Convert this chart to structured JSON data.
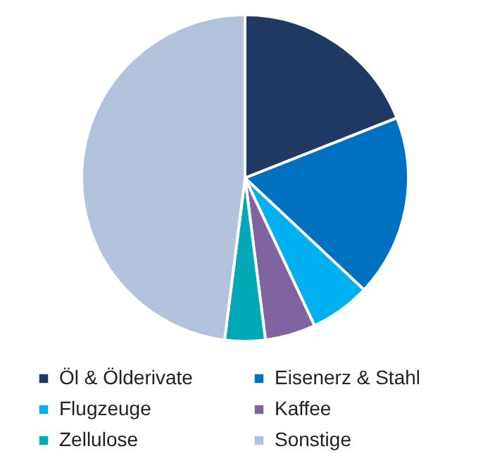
{
  "chart_data": {
    "type": "pie",
    "categories": [
      "Öl & Ölderivate",
      "Eisenerz & Stahl",
      "Flugzeuge",
      "Kaffee",
      "Zellulose",
      "Sonstige"
    ],
    "values": [
      19,
      18,
      6,
      5,
      4,
      48
    ],
    "colors": [
      "#203864",
      "#0070c0",
      "#00b0f0",
      "#8064a2",
      "#00a9b5",
      "#b4c3dc"
    ],
    "legend": "bottom"
  }
}
